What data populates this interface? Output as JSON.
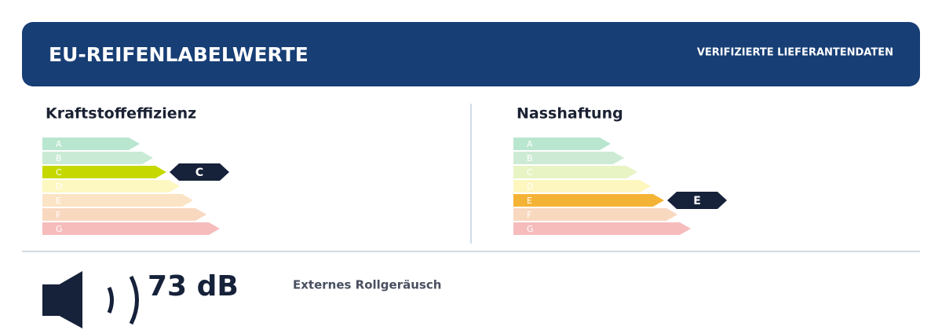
{
  "header": {
    "title": "EU-REIFENLABELWERTE",
    "badge": "VERIFIZIERTE LIEFERANTENDATEN"
  },
  "panels": [
    {
      "title": "Kraftstoffeffizienz",
      "classes": [
        "A",
        "B",
        "C",
        "D",
        "E",
        "F",
        "G"
      ],
      "selected": "C"
    },
    {
      "title": "Nasshaftung",
      "classes": [
        "A",
        "B",
        "C",
        "D",
        "E",
        "F",
        "G"
      ],
      "selected": "E"
    }
  ],
  "noise": {
    "value": "73 dB",
    "label": "Externes Rollgeräusch"
  }
}
